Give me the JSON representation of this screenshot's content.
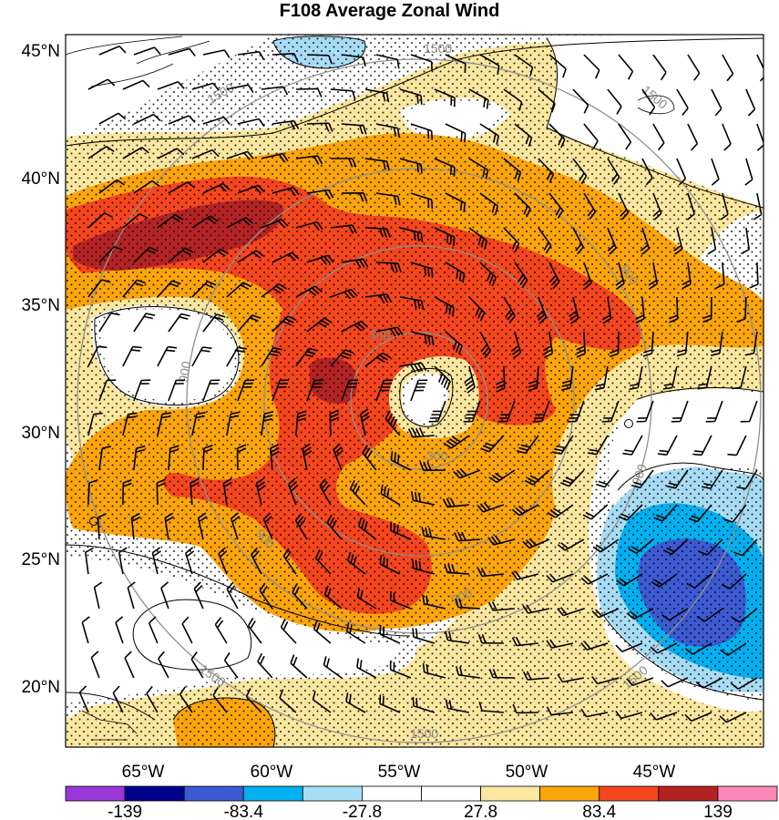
{
  "title": "F108 Average Zonal Wind",
  "lat_labels": [
    "45°N",
    "40°N",
    "35°N",
    "30°N",
    "25°N",
    "20°N"
  ],
  "lon_labels": [
    "65°W",
    "60°W",
    "55°W",
    "50°W",
    "45°W"
  ],
  "colorbar": {
    "colors": [
      "#9b37d8",
      "#00008c",
      "#3c5ad2",
      "#00b0f0",
      "#a8dcf5",
      "#ffffff",
      "#ffffff",
      "#fbe7a0",
      "#fca50a",
      "#f5461e",
      "#b42324",
      "#ff88b8"
    ],
    "labels": [
      "-139",
      "-83.4",
      "-27.8",
      "27.8",
      "83.4",
      "139"
    ]
  },
  "range_ring_labels": [
    "300",
    "900",
    "1500"
  ],
  "colors": {
    "contour": "#000000",
    "ring": "#909090",
    "stipple": "#000000"
  }
}
